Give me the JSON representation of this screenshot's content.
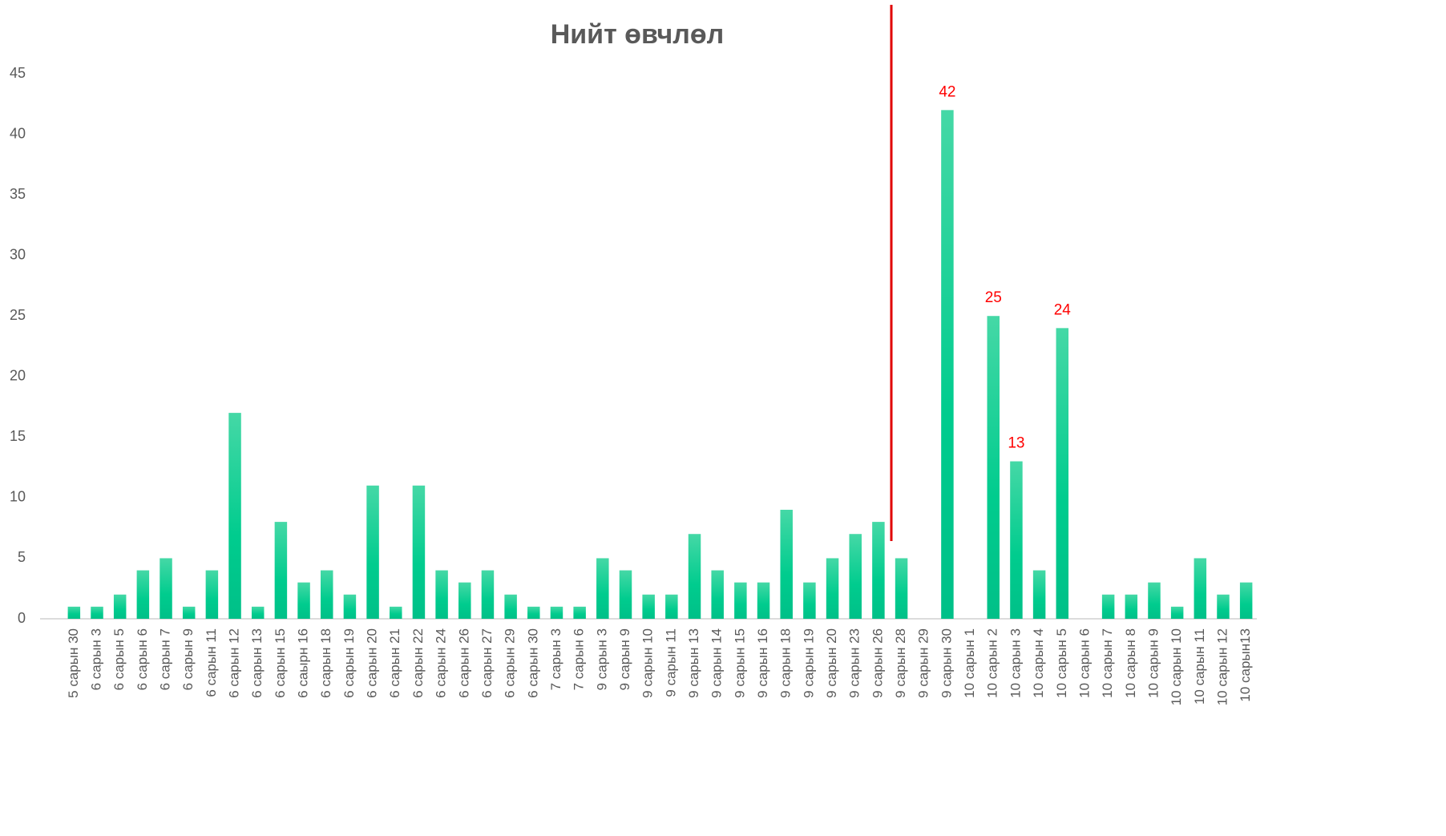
{
  "chart_data": {
    "type": "bar",
    "title": "Нийт өвчлөл",
    "categories": [
      "5 сарын 30",
      "6 сарын 3",
      "6 сарын 5",
      "6 сарын 6",
      "6 сарын 7",
      "6 сарын 9",
      "6 сарын 11",
      "6 сарын 12",
      "6 сарын 13",
      "6 сарын 15",
      "6 саырн 16",
      "6 сарын 18",
      "6 сарын 19",
      "6 сарын 20",
      "6 сарын 21",
      "6 сарын 22",
      "6 сарын 24",
      "6 сарын 26",
      "6 сарын 27",
      "6 сарын 29",
      "6 сарын 30",
      "7 сарын 3",
      "7 сарын 6",
      "9 сарын 3",
      "9 сарын 9",
      "9 сарын 10",
      "9 сарын 11",
      "9 сарын 13",
      "9 сарын 14",
      "9 сарын 15",
      "9 сарын 16",
      "9 сарын 18",
      "9 сарын 19",
      "9 сарын 20",
      "9 сарын 23",
      "9 сарын 26",
      "9 сарын 28",
      "9 сарын 29",
      "9 сарын 30",
      "10 сарын 1",
      "10 сарын 2",
      "10 сарын 3",
      "10 сарын 4",
      "10 сарын 5",
      "10 сарын 6",
      "10 сарын 7",
      "10 сарын 8",
      "10 сарын 9",
      "10 сарын 10",
      "10 сарын 11",
      "10 сарын 12",
      "10 сарын13"
    ],
    "values": [
      1,
      1,
      2,
      4,
      5,
      1,
      4,
      17,
      1,
      8,
      3,
      4,
      2,
      11,
      1,
      11,
      4,
      3,
      4,
      2,
      1,
      1,
      1,
      5,
      4,
      2,
      2,
      7,
      4,
      3,
      3,
      9,
      3,
      5,
      7,
      8,
      5,
      null,
      42,
      null,
      25,
      13,
      4,
      24,
      null,
      2,
      2,
      3,
      1,
      5,
      2,
      3
    ],
    "value_labels": [
      null,
      null,
      null,
      null,
      null,
      null,
      null,
      null,
      null,
      null,
      null,
      null,
      null,
      null,
      null,
      null,
      null,
      null,
      null,
      null,
      null,
      null,
      null,
      null,
      null,
      null,
      null,
      null,
      null,
      null,
      null,
      null,
      null,
      null,
      null,
      null,
      null,
      null,
      "42",
      null,
      "25",
      "13",
      null,
      "24",
      null,
      null,
      null,
      null,
      null,
      null,
      null,
      null
    ],
    "color": "#1fd197",
    "label_color": "#ff0000",
    "ylim": [
      0,
      45
    ],
    "yticks": [
      0,
      5,
      10,
      15,
      20,
      25,
      30,
      35,
      40,
      45
    ],
    "grid": false
  }
}
